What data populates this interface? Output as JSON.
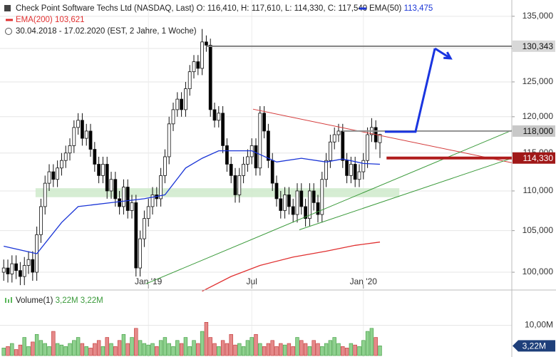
{
  "header": {
    "title": "Check Point Software Techs Ltd (NASDAQ, Last)",
    "ohlc": [
      "O: 116,410",
      "H: 117,610",
      "L: 114,330",
      "C: 117,540"
    ],
    "range": "30.04.2018 - 17.02.2020",
    "range_note": "(EST, 2 Jahre, 1 Woche)"
  },
  "chart_data": [
    {
      "type": "candlestick",
      "log_scale": true,
      "grid": true,
      "up_color": "#ffffff",
      "down_color": "#000000",
      "xlim": [
        -0.9,
        122.9
      ],
      "xticks": [
        {
          "value": 35,
          "label": "Jan '19"
        },
        {
          "value": 60,
          "label": "Jul"
        },
        {
          "value": 87,
          "label": "Jan '20"
        }
      ],
      "ylim": [
        98.1,
        137.6
      ],
      "yticks": [
        {
          "value": 100,
          "label": "100,000"
        },
        {
          "value": 105,
          "label": "105,000"
        },
        {
          "value": 110,
          "label": "110,000"
        },
        {
          "value": 115,
          "label": "115,000"
        },
        {
          "value": 120,
          "label": "120,000"
        },
        {
          "value": 125,
          "label": "125,000"
        },
        {
          "value": 130,
          "label": "130,000"
        },
        {
          "value": 135,
          "label": "135,000"
        }
      ],
      "open": [
        100.0,
        100.5,
        99.8,
        101.0,
        100.2,
        99.5,
        100.8,
        101.5,
        100.0,
        104.5,
        108.0,
        111.0,
        112.5,
        111.5,
        113.0,
        114.0,
        115.0,
        116.0,
        118.5,
        119.5,
        117.0,
        118.0,
        115.5,
        113.5,
        112.0,
        113.5,
        110.0,
        111.5,
        109.0,
        108.0,
        110.5,
        107.5,
        108.5,
        100.5,
        104.0,
        106.5,
        108.0,
        109.5,
        109.0,
        112.0,
        114.5,
        119.0,
        121.0,
        122.5,
        121.0,
        124.0,
        126.5,
        128.0,
        127.0,
        131.0,
        130.5,
        121.0,
        119.5,
        120.5,
        116.0,
        113.5,
        112.0,
        109.5,
        112.0,
        113.5,
        114.5,
        116.0,
        113.0,
        120.5,
        118.0,
        114.0,
        111.0,
        109.0,
        107.5,
        109.5,
        108.0,
        107.0,
        110.0,
        108.0,
        106.5,
        110.0,
        108.5,
        107.0,
        111.5,
        114.0,
        116.5,
        117.5,
        118.0,
        114.0,
        112.0,
        113.5,
        111.5,
        112.5,
        114.0,
        117.5,
        118.5,
        116.41
      ],
      "high": [
        101.5,
        101.5,
        102,
        102,
        101.2,
        101.8,
        102.5,
        102.5,
        105.5,
        109,
        112,
        113.5,
        113.5,
        114,
        115,
        116,
        117,
        119.5,
        120.5,
        120.5,
        119,
        119,
        116.5,
        114.5,
        114.5,
        114.5,
        112.5,
        112.5,
        110,
        111.5,
        111.5,
        109.5,
        109.5,
        105,
        107.5,
        109,
        110.5,
        110.5,
        113,
        115.5,
        120,
        122,
        123.5,
        123.5,
        125,
        127.5,
        129,
        129,
        133,
        132,
        131.5,
        122,
        121.5,
        121.5,
        117,
        114.5,
        113,
        113,
        114.5,
        115.5,
        117,
        117,
        121.5,
        121.5,
        119,
        115,
        112,
        110,
        110.5,
        110.5,
        109,
        111,
        111,
        109,
        111,
        111,
        109.5,
        112.5,
        115,
        117.5,
        118.5,
        119,
        119,
        115,
        114.5,
        114.5,
        113.5,
        115,
        118.5,
        119.8,
        119.5,
        117.61
      ],
      "low": [
        99,
        98.8,
        98.8,
        99.2,
        98.5,
        98.5,
        99.8,
        99,
        99,
        103.5,
        107,
        110,
        110.5,
        110.5,
        112,
        113,
        114,
        115,
        117.5,
        116,
        116,
        114.5,
        112.5,
        111,
        111,
        109,
        109,
        108,
        107,
        107,
        106.5,
        106.5,
        99.5,
        99.5,
        103,
        105.5,
        107,
        108,
        108,
        111,
        113.5,
        118,
        120,
        120,
        120,
        123,
        125.5,
        126,
        126,
        129.5,
        120,
        118.5,
        118.5,
        115,
        112.5,
        111,
        108.5,
        108.5,
        111,
        112.5,
        113.5,
        112,
        112,
        117,
        113,
        110,
        108,
        106.5,
        106.5,
        107,
        106,
        106,
        107,
        105.5,
        105.5,
        107.5,
        106,
        106,
        110.5,
        113,
        115.5,
        116.5,
        113,
        111,
        111,
        110.5,
        110.5,
        111.5,
        113,
        116.5,
        115.5,
        114.33
      ],
      "close": [
        100.5,
        99.8,
        101.0,
        100.2,
        99.5,
        100.8,
        101.5,
        100.0,
        104.5,
        108.0,
        111.0,
        112.5,
        111.5,
        113.0,
        114.0,
        115.0,
        116.0,
        118.5,
        119.5,
        117.0,
        118.0,
        115.5,
        113.5,
        112.0,
        113.5,
        110.0,
        111.5,
        109.0,
        108.0,
        110.5,
        107.5,
        108.5,
        100.5,
        104.0,
        106.5,
        108.0,
        109.5,
        109.0,
        112.0,
        114.5,
        119.0,
        121.0,
        122.5,
        121.0,
        124.0,
        126.5,
        128.0,
        127.0,
        131.0,
        130.5,
        121.0,
        119.5,
        120.5,
        116.0,
        113.5,
        112.0,
        109.5,
        112.0,
        113.5,
        114.5,
        116.0,
        113.0,
        120.5,
        118.0,
        114.0,
        111.0,
        109.0,
        107.5,
        109.5,
        108.0,
        107.0,
        110.0,
        108.0,
        106.5,
        110.0,
        108.5,
        107.0,
        111.5,
        114.0,
        116.5,
        117.5,
        118.0,
        114.0,
        112.0,
        113.5,
        111.5,
        112.5,
        114.0,
        117.5,
        118.5,
        116.5,
        117.54
      ],
      "series": [
        {
          "name": "EMA(50)",
          "value_label": "113,475",
          "color": "#1a35d6",
          "x": [
            0,
            8,
            14,
            18,
            26,
            34,
            39,
            44,
            48,
            52,
            60,
            66,
            72,
            78,
            82,
            87,
            91
          ],
          "values": [
            103.1,
            102.2,
            106,
            108,
            108.5,
            109,
            109.5,
            113,
            114.3,
            115.3,
            115.3,
            113.8,
            114.3,
            113.8,
            114.2,
            113.6,
            113.5
          ]
        },
        {
          "name": "EMA(200)",
          "value_label": "103,621",
          "color": "#e03030",
          "x": [
            48,
            55,
            62,
            70,
            78,
            85,
            91
          ],
          "values": [
            97.8,
            99.5,
            100.8,
            101.8,
            102.5,
            103.2,
            103.6
          ]
        }
      ],
      "band": {
        "x": [
          7.7,
          95.7
        ],
        "values": [
          109.2,
          110.35
        ],
        "color": "#cfeacb"
      },
      "trendlines": [
        {
          "x": [
            60.3,
            122.9
          ],
          "values": [
            121.07,
            113.7
          ],
          "color": "#d43a3a"
        },
        {
          "x": [
            34.4,
            122.9
          ],
          "values": [
            98.65,
            118.1
          ],
          "color": "#3a9a3a"
        },
        {
          "x": [
            71.5,
            122.9
          ],
          "values": [
            105.1,
            114.3
          ],
          "color": "#3a9a3a"
        }
      ],
      "levels": [
        {
          "value": 130.343,
          "label": "130,343",
          "from": 49,
          "color": "#808080",
          "tag_color": "#d8d8d8"
        },
        {
          "value": 118.0,
          "label": "118,000",
          "from": 82,
          "color": "#909090",
          "tag_color": "#c8c8c8"
        },
        {
          "value": 114.33,
          "label": "114,330",
          "from": 92.6,
          "color": "#b01c1c",
          "tag_color": "#a01818"
        }
      ],
      "arrow": {
        "x": [
          92.2,
          99.6,
          104.3,
          108.1
        ],
        "values": [
          117.9,
          117.9,
          130.0,
          128.5
        ],
        "color": "#1a35e0"
      }
    },
    {
      "type": "bar",
      "title": "Volume(1)",
      "legend_values": [
        "3,22M",
        "3,22M"
      ],
      "last_label": "3,22M",
      "up_color": "#8fd18f",
      "down_color": "#e58a8a",
      "ylim": [
        0,
        20.5
      ],
      "yticks": [
        {
          "value": 10,
          "label": "10,00M"
        }
      ],
      "values": [
        2.5,
        3,
        4,
        2,
        3.5,
        6,
        3,
        4.5,
        7,
        5,
        4,
        3,
        8,
        4,
        3.5,
        3,
        4,
        5,
        6,
        4,
        3,
        2.5,
        4,
        5,
        3,
        6,
        4,
        3,
        5,
        7,
        4,
        6,
        9,
        5,
        4,
        3.5,
        4,
        3,
        5,
        6,
        4,
        3,
        5,
        4,
        6,
        3,
        5,
        4,
        8,
        11,
        6,
        4,
        3,
        5,
        4,
        7,
        3.5,
        4,
        3,
        5,
        6,
        7,
        4,
        3,
        4,
        5,
        3,
        4,
        3.5,
        4,
        3,
        6,
        5,
        4,
        3,
        5,
        4,
        3,
        4,
        5,
        6,
        4,
        3,
        2.5,
        4,
        3.5,
        3,
        5,
        8,
        9,
        6,
        3.22
      ]
    }
  ]
}
